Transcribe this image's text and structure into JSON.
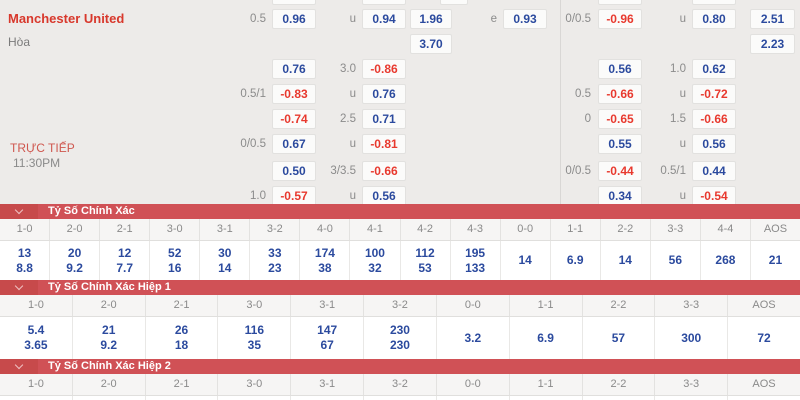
{
  "colors": {
    "odds_blue": "#2b4a9e",
    "odds_red": "#e8392e",
    "band_red": "#d05156",
    "band_red_dark": "#c74a4b",
    "team_red": "#d8382c",
    "live_red": "#cf574f"
  },
  "icons": {
    "section_toggle": "chevron-down-icon"
  },
  "match": {
    "home_team": "Manchester United",
    "draw_label": "Hòa",
    "live_label": "TRỰC TIẾP",
    "time": "11:30PM"
  },
  "odds_grid": {
    "rows": [
      {
        "h1": "0.5",
        "o1": "0.96",
        "h2": "u",
        "o2": "0.94",
        "o3": "1.96",
        "he": "e",
        "o4": "0.93",
        "h3": "0/0.5",
        "o5": "-0.96",
        "h4": "u",
        "o6": "0.80",
        "o7": "2.51"
      },
      {
        "o3": "3.70",
        "o7": "2.23"
      },
      {
        "o1": "0.76",
        "h2": "3.0",
        "o2": "-0.86",
        "o5": "0.56",
        "h4": "1.0",
        "o6": "0.62"
      },
      {
        "h1": "0.5/1",
        "o1": "-0.83",
        "h2": "u",
        "o2": "0.76",
        "h3": "0.5",
        "o5": "-0.66",
        "h4": "u",
        "o6": "-0.72"
      },
      {
        "o1": "-0.74",
        "h2": "2.5",
        "o2": "0.71",
        "h3": "0",
        "o5": "-0.65",
        "h4": "1.5",
        "o6": "-0.66"
      },
      {
        "h1": "0/0.5",
        "o1": "0.67",
        "h2": "u",
        "o2": "-0.81",
        "o5": "0.55",
        "h4": "u",
        "o6": "0.56"
      },
      {
        "o1": "0.50",
        "h2": "3/3.5",
        "o2": "-0.66",
        "h3": "0/0.5",
        "o5": "-0.44",
        "h4": "0.5/1",
        "o6": "0.44"
      },
      {
        "h1": "1.0",
        "o1": "-0.57",
        "h2": "u",
        "o2": "0.56",
        "o5": "0.34",
        "h4": "u",
        "o6": "-0.54"
      }
    ]
  },
  "sections": [
    {
      "title": "Tỷ Số Chính Xác",
      "columns": [
        "1-0",
        "2-0",
        "2-1",
        "3-0",
        "3-1",
        "3-2",
        "4-0",
        "4-1",
        "4-2",
        "4-3",
        "0-0",
        "1-1",
        "2-2",
        "3-3",
        "4-4",
        "AOS"
      ],
      "values": [
        [
          "13",
          "8.8"
        ],
        [
          "20",
          "9.2"
        ],
        [
          "12",
          "7.7"
        ],
        [
          "52",
          "16"
        ],
        [
          "30",
          "14"
        ],
        [
          "33",
          "23"
        ],
        [
          "174",
          "38"
        ],
        [
          "100",
          "32"
        ],
        [
          "112",
          "53"
        ],
        [
          "195",
          "133"
        ],
        [
          "14"
        ],
        [
          "6.9"
        ],
        [
          "14"
        ],
        [
          "56"
        ],
        [
          "268"
        ],
        [
          "21"
        ]
      ],
      "row_class": "row-h39"
    },
    {
      "title": "Tỷ Số Chính Xác Hiệp 1",
      "columns": [
        "1-0",
        "2-0",
        "2-1",
        "3-0",
        "3-1",
        "3-2",
        "0-0",
        "1-1",
        "2-2",
        "3-3",
        "AOS"
      ],
      "values": [
        [
          "5.4",
          "3.65"
        ],
        [
          "21",
          "9.2"
        ],
        [
          "26",
          "18"
        ],
        [
          "116",
          "35"
        ],
        [
          "147",
          "67"
        ],
        [
          "230",
          "230"
        ],
        [
          "3.2"
        ],
        [
          "6.9"
        ],
        [
          "57"
        ],
        [
          "300"
        ],
        [
          "72"
        ]
      ],
      "row_class": "row-h42"
    },
    {
      "title": "Tỷ Số Chính Xác Hiệp 2",
      "columns": [
        "1-0",
        "2-0",
        "2-1",
        "3-0",
        "3-1",
        "3-2",
        "0-0",
        "1-1",
        "2-2",
        "3-3",
        "AOS"
      ],
      "values": null,
      "row_class": ""
    }
  ]
}
